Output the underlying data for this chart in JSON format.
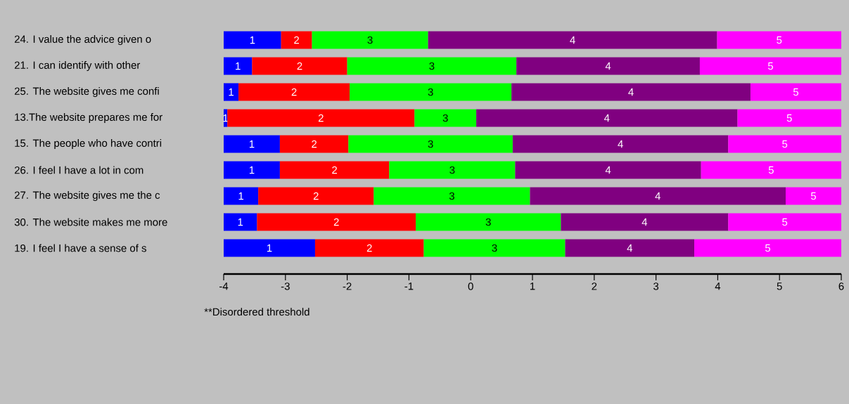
{
  "chart_data": {
    "type": "bar",
    "orientation": "horizontal",
    "categories": [
      "24. I value the advice given o",
      "21. I can identify with other",
      "25. The website gives me confi",
      "13.The website prepares me for",
      "15. The people who have contri",
      "26. I feel I have a lot in com",
      "27. The website gives me the c",
      "30. The website makes me more",
      "19. I feel I have a sense of s"
    ],
    "series": [
      {
        "name": "1",
        "color": "#0000ff",
        "base": [
          -4,
          -4,
          -4,
          -4,
          -4,
          -4,
          -4,
          -4,
          -4
        ],
        "values": [
          0.93,
          0.46,
          0.24,
          0.06,
          0.91,
          0.91,
          0.56,
          0.54,
          1.48
        ]
      },
      {
        "name": "2",
        "color": "#ff0000",
        "base": [
          -3.07,
          -3.54,
          -3.76,
          -3.94,
          -3.09,
          -3.09,
          -3.44,
          -3.46,
          -2.52
        ],
        "values": [
          0.5,
          1.54,
          1.8,
          3.03,
          1.11,
          1.77,
          1.87,
          2.57,
          1.76
        ]
      },
      {
        "name": "3",
        "color": "#00ff00",
        "base": [
          -2.57,
          -2.0,
          -1.96,
          -0.91,
          -1.98,
          -1.32,
          -1.57,
          -0.89,
          -0.76
        ],
        "values": [
          1.88,
          2.74,
          2.62,
          1.0,
          2.66,
          2.04,
          2.53,
          2.35,
          2.29
        ]
      },
      {
        "name": "4",
        "color": "#800080",
        "base": [
          -0.69,
          0.74,
          0.66,
          0.09,
          0.68,
          0.72,
          0.96,
          1.46,
          1.53
        ],
        "values": [
          4.68,
          2.97,
          3.87,
          4.23,
          3.49,
          3.01,
          4.14,
          2.71,
          2.09
        ]
      },
      {
        "name": "5",
        "color": "#ff00ff",
        "base": [
          3.99,
          3.71,
          4.53,
          4.32,
          4.17,
          3.73,
          5.1,
          4.17,
          3.62
        ],
        "values": [
          2.01,
          2.29,
          1.47,
          1.68,
          1.83,
          2.27,
          0.9,
          1.83,
          2.38
        ]
      }
    ],
    "xlim": [
      -4,
      6
    ],
    "xticks": [
      -4,
      -3,
      -2,
      -1,
      0,
      1,
      2,
      3,
      4,
      5,
      6
    ],
    "annotations": [
      "**Disordered threshold"
    ]
  }
}
